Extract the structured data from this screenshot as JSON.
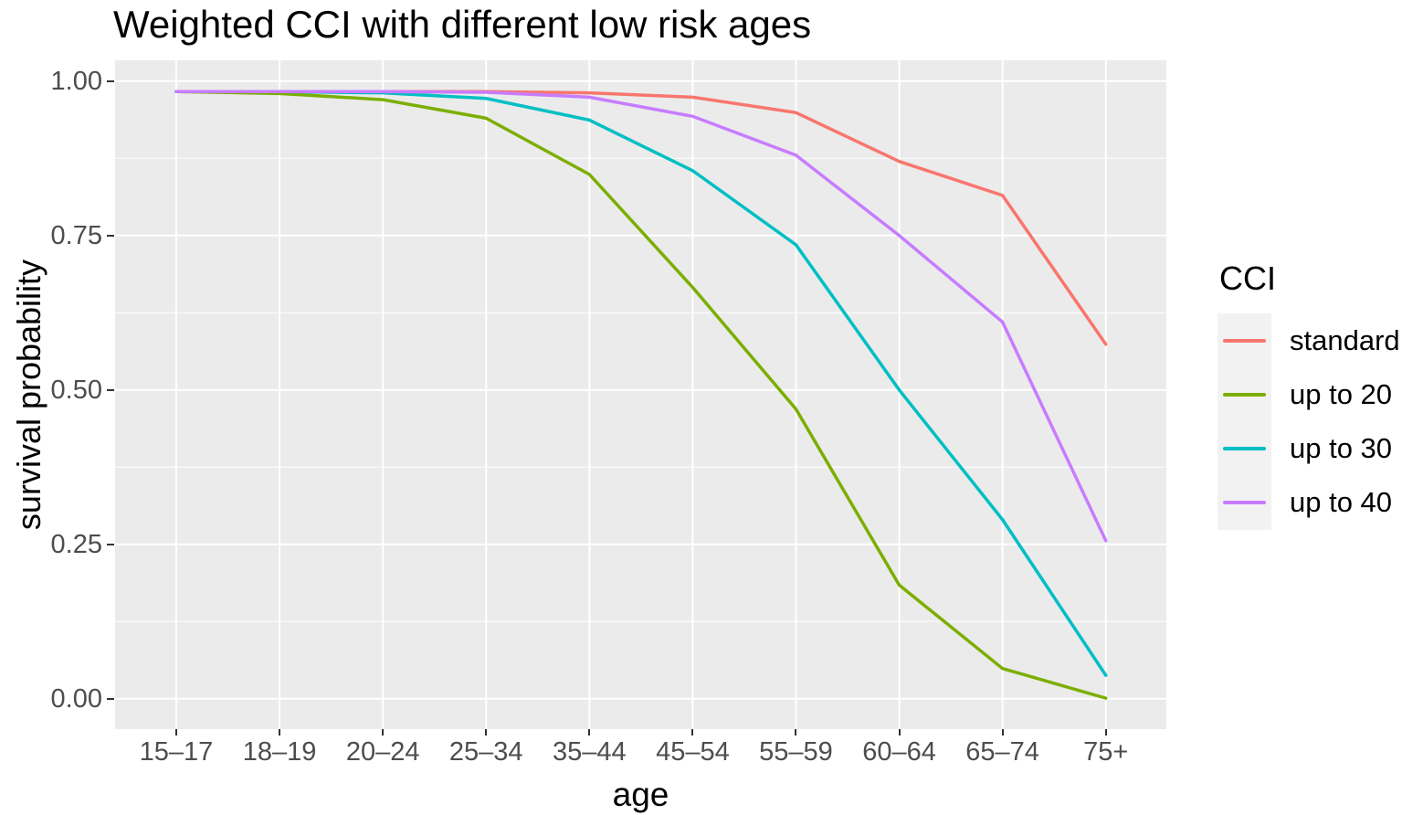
{
  "chart_data": {
    "type": "line",
    "title": "Weighted CCI with different low risk ages",
    "xlabel": "age",
    "ylabel": "survival probability",
    "categories": [
      "15–17",
      "18–19",
      "20–24",
      "25–34",
      "35–44",
      "45–54",
      "55–59",
      "60–64",
      "65–74",
      "75+"
    ],
    "series": [
      {
        "name": "standard",
        "color": "#F8766D",
        "values": [
          0.983,
          0.983,
          0.983,
          0.983,
          0.981,
          0.974,
          0.949,
          0.87,
          0.815,
          0.574
        ]
      },
      {
        "name": "up to 20",
        "color": "#7CAE00",
        "values": [
          0.983,
          0.98,
          0.97,
          0.94,
          0.849,
          0.666,
          0.469,
          0.184,
          0.049,
          0.001
        ]
      },
      {
        "name": "up to 30",
        "color": "#00BFC4",
        "values": [
          0.983,
          0.983,
          0.981,
          0.972,
          0.937,
          0.855,
          0.735,
          0.5,
          0.29,
          0.038
        ]
      },
      {
        "name": "up to 40",
        "color": "#C77CFF",
        "values": [
          0.983,
          0.983,
          0.983,
          0.982,
          0.974,
          0.943,
          0.88,
          0.75,
          0.61,
          0.256
        ]
      }
    ],
    "ylim": [
      0,
      1
    ],
    "y_ticks": [
      {
        "value": 1.0,
        "label": "1.00"
      },
      {
        "value": 0.75,
        "label": "0.75"
      },
      {
        "value": 0.5,
        "label": "0.50"
      },
      {
        "value": 0.25,
        "label": "0.25"
      },
      {
        "value": 0.0,
        "label": "0.00"
      }
    ],
    "y_minor_ticks": [
      0.875,
      0.625,
      0.375,
      0.125
    ],
    "grid": true,
    "legend": {
      "title": "CCI",
      "position": "right"
    },
    "colors": {
      "panel_bg": "#EBEBEB",
      "grid": "#FFFFFF",
      "tick_text": "#4D4D4D",
      "tick_mark": "#333333",
      "text": "#000000",
      "legend_key_bg": "#F2F2F2",
      "background": "#FFFFFF"
    }
  }
}
